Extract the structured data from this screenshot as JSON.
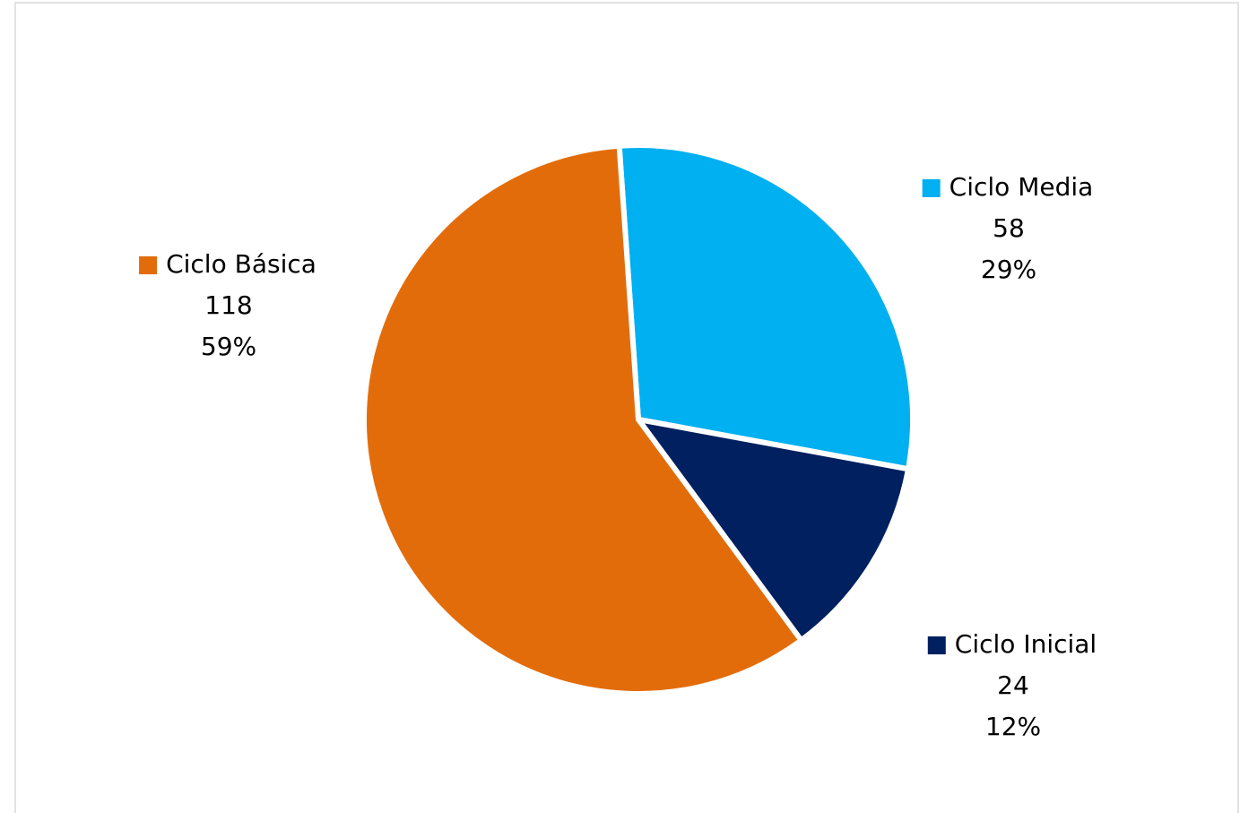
{
  "chart_data": {
    "type": "pie",
    "categories": [
      "Ciclo Media",
      "Ciclo Inicial",
      "Ciclo Básica"
    ],
    "values": [
      58,
      24,
      118
    ],
    "percent_labels": [
      "29%",
      "12%",
      "59%"
    ],
    "colors": [
      "#00b0f0",
      "#002060",
      "#e36c0a"
    ]
  }
}
